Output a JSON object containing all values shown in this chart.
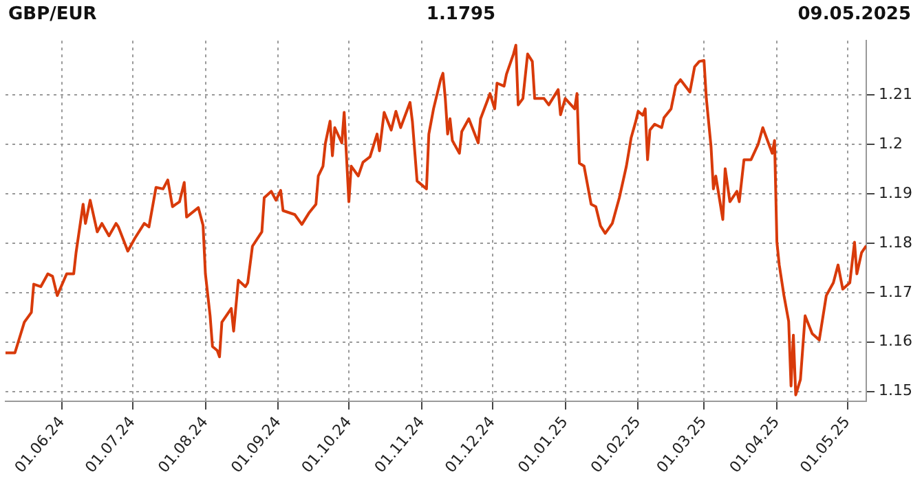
{
  "chart_data": {
    "type": "line",
    "title": "GBP/EUR",
    "subtitle": "1.1795",
    "annotations": [
      "09.05.2025"
    ],
    "x": [
      "2024-05-08",
      "2024-05-12",
      "2024-05-14",
      "2024-05-16",
      "2024-05-19",
      "2024-05-20",
      "2024-05-23",
      "2024-05-26",
      "2024-05-28",
      "2024-05-30",
      "2024-06-03",
      "2024-06-06",
      "2024-06-07",
      "2024-06-10",
      "2024-06-11",
      "2024-06-13",
      "2024-06-16",
      "2024-06-18",
      "2024-06-21",
      "2024-06-24",
      "2024-06-25",
      "2024-06-29",
      "2024-07-02",
      "2024-07-06",
      "2024-07-08",
      "2024-07-11",
      "2024-07-14",
      "2024-07-16",
      "2024-07-18",
      "2024-07-21",
      "2024-07-23",
      "2024-07-24",
      "2024-07-29",
      "2024-07-31",
      "2024-08-01",
      "2024-08-03",
      "2024-08-04",
      "2024-08-06",
      "2024-08-07",
      "2024-08-08",
      "2024-08-12",
      "2024-08-13",
      "2024-08-15",
      "2024-08-18",
      "2024-08-19",
      "2024-08-21",
      "2024-08-25",
      "2024-08-26",
      "2024-08-29",
      "2024-08-31",
      "2024-09-02",
      "2024-09-03",
      "2024-09-08",
      "2024-09-11",
      "2024-09-14",
      "2024-09-17",
      "2024-09-18",
      "2024-09-20",
      "2024-09-21",
      "2024-09-23",
      "2024-09-24",
      "2024-09-25",
      "2024-09-28",
      "2024-09-29",
      "2024-10-01",
      "2024-10-02",
      "2024-10-05",
      "2024-10-07",
      "2024-10-10",
      "2024-10-13",
      "2024-10-14",
      "2024-10-16",
      "2024-10-19",
      "2024-10-21",
      "2024-10-23",
      "2024-10-27",
      "2024-10-28",
      "2024-10-30",
      "2024-11-03",
      "2024-11-04",
      "2024-11-06",
      "2024-11-09",
      "2024-11-10",
      "2024-11-11",
      "2024-11-12",
      "2024-11-13",
      "2024-11-14",
      "2024-11-17",
      "2024-11-18",
      "2024-11-21",
      "2024-11-25",
      "2024-11-26",
      "2024-11-29",
      "2024-11-30",
      "2024-12-02",
      "2024-12-03",
      "2024-12-06",
      "2024-12-07",
      "2024-12-10",
      "2024-12-11",
      "2024-12-12",
      "2024-12-14",
      "2024-12-16",
      "2024-12-18",
      "2024-12-19",
      "2024-12-23",
      "2024-12-25",
      "2024-12-29",
      "2024-12-30",
      "2025-01-01",
      "2025-01-05",
      "2025-01-06",
      "2025-01-07",
      "2025-01-09",
      "2025-01-12",
      "2025-01-14",
      "2025-01-16",
      "2025-01-18",
      "2025-01-21",
      "2025-01-24",
      "2025-01-27",
      "2025-01-29",
      "2025-01-31",
      "2025-02-01",
      "2025-02-03",
      "2025-02-04",
      "2025-02-05",
      "2025-02-06",
      "2025-02-08",
      "2025-02-11",
      "2025-02-12",
      "2025-02-15",
      "2025-02-17",
      "2025-02-19",
      "2025-02-23",
      "2025-02-25",
      "2025-02-27",
      "2025-03-01",
      "2025-03-02",
      "2025-03-04",
      "2025-03-05",
      "2025-03-06",
      "2025-03-09",
      "2025-03-10",
      "2025-03-12",
      "2025-03-15",
      "2025-03-16",
      "2025-03-18",
      "2025-03-21",
      "2025-03-24",
      "2025-03-26",
      "2025-03-29",
      "2025-03-30",
      "2025-03-31",
      "2025-04-01",
      "2025-04-02",
      "2025-04-04",
      "2025-04-06",
      "2025-04-07",
      "2025-04-08",
      "2025-04-09",
      "2025-04-11",
      "2025-04-13",
      "2025-04-16",
      "2025-04-19",
      "2025-04-22",
      "2025-04-25",
      "2025-04-27",
      "2025-04-29",
      "2025-05-02",
      "2025-05-04",
      "2025-05-05",
      "2025-05-07",
      "2025-05-09"
    ],
    "series": [
      {
        "color": "#d83a0a",
        "values": [
          1.1578,
          1.1578,
          1.1609,
          1.164,
          1.166,
          1.1717,
          1.1712,
          1.1738,
          1.1733,
          1.1694,
          1.1738,
          1.1738,
          1.1781,
          1.1879,
          1.184,
          1.1887,
          1.1823,
          1.184,
          1.1815,
          1.184,
          1.1833,
          1.1784,
          1.181,
          1.184,
          1.1833,
          1.1913,
          1.191,
          1.1928,
          1.1874,
          1.1884,
          1.1923,
          1.1853,
          1.1872,
          1.1836,
          1.1738,
          1.1653,
          1.1591,
          1.1583,
          1.157,
          1.164,
          1.1668,
          1.1622,
          1.1725,
          1.1712,
          1.172,
          1.1794,
          1.1823,
          1.1892,
          1.1905,
          1.1887,
          1.1907,
          1.1866,
          1.1858,
          1.1838,
          1.1861,
          1.1879,
          1.1936,
          1.1956,
          1.2002,
          1.2047,
          1.1977,
          1.2034,
          1.2003,
          1.2065,
          1.1884,
          1.1956,
          1.1936,
          1.1964,
          1.1975,
          1.2021,
          1.1987,
          1.2065,
          1.2029,
          1.2067,
          1.2034,
          1.2085,
          1.2047,
          1.1926,
          1.191,
          1.2021,
          1.2072,
          1.2131,
          1.2144,
          1.2093,
          1.2021,
          1.2052,
          1.2008,
          1.1982,
          1.2026,
          1.2052,
          1.2003,
          1.2052,
          1.209,
          1.2103,
          1.2072,
          1.2124,
          1.2118,
          1.2142,
          1.2183,
          1.2201,
          1.208,
          1.2093,
          1.2183,
          1.2168,
          1.2093,
          1.2093,
          1.208,
          1.2111,
          1.206,
          1.2093,
          1.2072,
          1.2103,
          1.1962,
          1.1956,
          1.1879,
          1.1874,
          1.1835,
          1.182,
          1.184,
          1.1892,
          1.1956,
          1.2013,
          1.2047,
          1.2067,
          1.2059,
          1.2072,
          1.1969,
          1.2029,
          1.2041,
          1.2034,
          1.2054,
          1.2072,
          1.2119,
          1.2131,
          1.2106,
          1.2157,
          1.2168,
          1.217,
          1.2093,
          1.1995,
          1.191,
          1.1936,
          1.1848,
          1.1951,
          1.1884,
          1.1905,
          1.1884,
          1.1969,
          1.1969,
          1.2,
          1.2034,
          1.1995,
          1.1982,
          1.2008,
          1.1802,
          1.1756,
          1.1694,
          1.1642,
          1.1511,
          1.1614,
          1.1493,
          1.1524,
          1.1653,
          1.1617,
          1.1604,
          1.1694,
          1.172,
          1.1756,
          1.1707,
          1.172,
          1.1802,
          1.1738,
          1.1781,
          1.1795
        ]
      }
    ],
    "xlim": [
      "2024-05-08",
      "2025-05-09"
    ],
    "xticks": [
      {
        "value": "2024-06-01",
        "label": "01.06.24"
      },
      {
        "value": "2024-07-01",
        "label": "01.07.24"
      },
      {
        "value": "2024-08-01",
        "label": "01.08.24"
      },
      {
        "value": "2024-09-01",
        "label": "01.09.24"
      },
      {
        "value": "2024-10-01",
        "label": "01.10.24"
      },
      {
        "value": "2024-11-01",
        "label": "01.11.24"
      },
      {
        "value": "2024-12-01",
        "label": "01.12.24"
      },
      {
        "value": "2025-01-01",
        "label": "01.01.25"
      },
      {
        "value": "2025-02-01",
        "label": "01.02.25"
      },
      {
        "value": "2025-03-01",
        "label": "01.03.25"
      },
      {
        "value": "2025-04-01",
        "label": "01.04.25"
      },
      {
        "value": "2025-05-01",
        "label": "01.05.25"
      }
    ],
    "ylim": [
      1.148,
      1.221
    ],
    "yticks": [
      1.15,
      1.16,
      1.17,
      1.18,
      1.19,
      1.2,
      1.21
    ],
    "grid": true,
    "marker": "none",
    "line_style": "solid"
  }
}
